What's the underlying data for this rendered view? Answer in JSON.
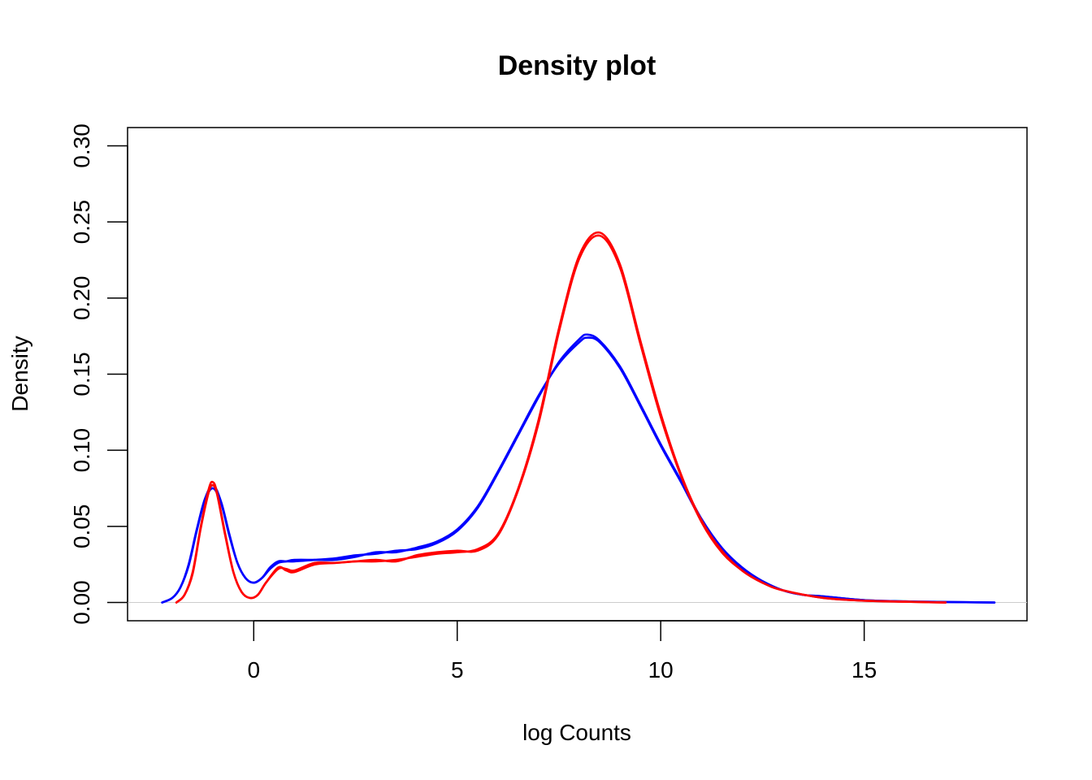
{
  "chart_data": {
    "type": "line",
    "title": "Density plot",
    "xlabel": "log Counts",
    "ylabel": "Density",
    "xlim": [
      -3.1,
      19.0
    ],
    "ylim": [
      -0.012,
      0.312
    ],
    "xticks": [
      0,
      5,
      10,
      15
    ],
    "xtick_labels": [
      "0",
      "5",
      "10",
      "15"
    ],
    "yticks": [
      0.0,
      0.05,
      0.1,
      0.15,
      0.2,
      0.25,
      0.3
    ],
    "ytick_labels": [
      "0.00",
      "0.05",
      "0.10",
      "0.15",
      "0.20",
      "0.25",
      "0.30"
    ],
    "grid": false,
    "reference_line_y": 0,
    "colors": {
      "blue_group": "#0000ff",
      "red_group": "#ff0000"
    },
    "series": [
      {
        "color": "#0000ff",
        "x": [
          -2.25,
          -2.0,
          -1.8,
          -1.6,
          -1.4,
          -1.2,
          -1.0,
          -0.8,
          -0.6,
          -0.4,
          -0.2,
          0.0,
          0.2,
          0.4,
          0.6,
          0.8,
          1.0,
          1.5,
          2.0,
          2.5,
          3.0,
          3.5,
          4.0,
          4.5,
          5.0,
          5.5,
          6.0,
          6.5,
          7.0,
          7.5,
          8.0,
          8.2,
          8.5,
          9.0,
          9.5,
          10.0,
          10.5,
          11.0,
          11.5,
          12.0,
          12.5,
          13.0,
          13.5,
          14.0,
          15.0,
          16.0,
          17.0,
          18.2
        ],
        "y": [
          0.0,
          0.003,
          0.01,
          0.025,
          0.048,
          0.068,
          0.077,
          0.066,
          0.045,
          0.026,
          0.016,
          0.013,
          0.016,
          0.023,
          0.027,
          0.027,
          0.027,
          0.028,
          0.029,
          0.031,
          0.032,
          0.034,
          0.035,
          0.039,
          0.047,
          0.062,
          0.085,
          0.11,
          0.135,
          0.158,
          0.173,
          0.176,
          0.172,
          0.155,
          0.13,
          0.104,
          0.08,
          0.055,
          0.036,
          0.023,
          0.014,
          0.008,
          0.005,
          0.004,
          0.0015,
          0.0007,
          0.0003,
          0.0
        ]
      },
      {
        "color": "#0000ff",
        "x": [
          -2.25,
          -2.0,
          -1.8,
          -1.6,
          -1.4,
          -1.2,
          -1.0,
          -0.8,
          -0.6,
          -0.4,
          -0.2,
          0.0,
          0.2,
          0.4,
          0.6,
          0.8,
          1.0,
          1.5,
          2.0,
          2.5,
          3.0,
          3.5,
          4.0,
          4.5,
          5.0,
          5.5,
          6.0,
          6.5,
          7.0,
          7.5,
          8.0,
          8.2,
          8.5,
          9.0,
          9.5,
          10.0,
          10.5,
          11.0,
          11.5,
          12.0,
          12.5,
          13.0,
          13.5,
          14.0,
          15.0,
          16.0,
          17.0,
          18.2
        ],
        "y": [
          0.0,
          0.003,
          0.01,
          0.024,
          0.047,
          0.067,
          0.075,
          0.065,
          0.044,
          0.026,
          0.016,
          0.013,
          0.016,
          0.022,
          0.026,
          0.027,
          0.028,
          0.028,
          0.028,
          0.03,
          0.033,
          0.033,
          0.036,
          0.04,
          0.048,
          0.063,
          0.086,
          0.111,
          0.136,
          0.157,
          0.171,
          0.174,
          0.171,
          0.154,
          0.129,
          0.103,
          0.079,
          0.054,
          0.035,
          0.022,
          0.014,
          0.008,
          0.005,
          0.004,
          0.0015,
          0.0007,
          0.0003,
          0.0
        ]
      },
      {
        "color": "#ff0000",
        "x": [
          -1.9,
          -1.7,
          -1.5,
          -1.3,
          -1.1,
          -1.0,
          -0.9,
          -0.7,
          -0.5,
          -0.3,
          -0.1,
          0.1,
          0.3,
          0.6,
          0.8,
          1.0,
          1.5,
          2.0,
          2.5,
          3.0,
          3.5,
          4.0,
          4.5,
          5.0,
          5.5,
          6.0,
          6.5,
          7.0,
          7.5,
          8.0,
          8.5,
          9.0,
          9.5,
          10.0,
          10.5,
          11.0,
          11.5,
          12.0,
          12.5,
          13.0,
          14.0,
          15.0,
          16.0,
          17.0
        ],
        "y": [
          0.0,
          0.005,
          0.02,
          0.05,
          0.075,
          0.079,
          0.072,
          0.045,
          0.02,
          0.007,
          0.003,
          0.005,
          0.013,
          0.022,
          0.022,
          0.021,
          0.026,
          0.026,
          0.027,
          0.027,
          0.028,
          0.03,
          0.032,
          0.033,
          0.035,
          0.045,
          0.075,
          0.12,
          0.18,
          0.228,
          0.243,
          0.222,
          0.172,
          0.124,
          0.084,
          0.054,
          0.034,
          0.021,
          0.013,
          0.008,
          0.003,
          0.0012,
          0.0005,
          0.0
        ]
      },
      {
        "color": "#ff0000",
        "x": [
          -1.9,
          -1.7,
          -1.5,
          -1.3,
          -1.1,
          -1.0,
          -0.9,
          -0.7,
          -0.5,
          -0.3,
          -0.1,
          0.1,
          0.3,
          0.6,
          0.8,
          1.0,
          1.5,
          2.0,
          2.5,
          3.0,
          3.5,
          4.0,
          4.5,
          5.0,
          5.5,
          6.0,
          6.5,
          7.0,
          7.5,
          8.0,
          8.5,
          9.0,
          9.5,
          10.0,
          10.5,
          11.0,
          11.5,
          12.0,
          12.5,
          13.0,
          14.0,
          15.0,
          16.0,
          17.0
        ],
        "y": [
          0.0,
          0.005,
          0.019,
          0.049,
          0.073,
          0.077,
          0.071,
          0.044,
          0.02,
          0.007,
          0.003,
          0.005,
          0.013,
          0.023,
          0.021,
          0.02,
          0.025,
          0.026,
          0.027,
          0.028,
          0.027,
          0.031,
          0.033,
          0.034,
          0.034,
          0.044,
          0.074,
          0.118,
          0.178,
          0.226,
          0.241,
          0.22,
          0.17,
          0.122,
          0.083,
          0.053,
          0.033,
          0.021,
          0.013,
          0.008,
          0.003,
          0.0012,
          0.0005,
          0.0
        ]
      }
    ]
  }
}
